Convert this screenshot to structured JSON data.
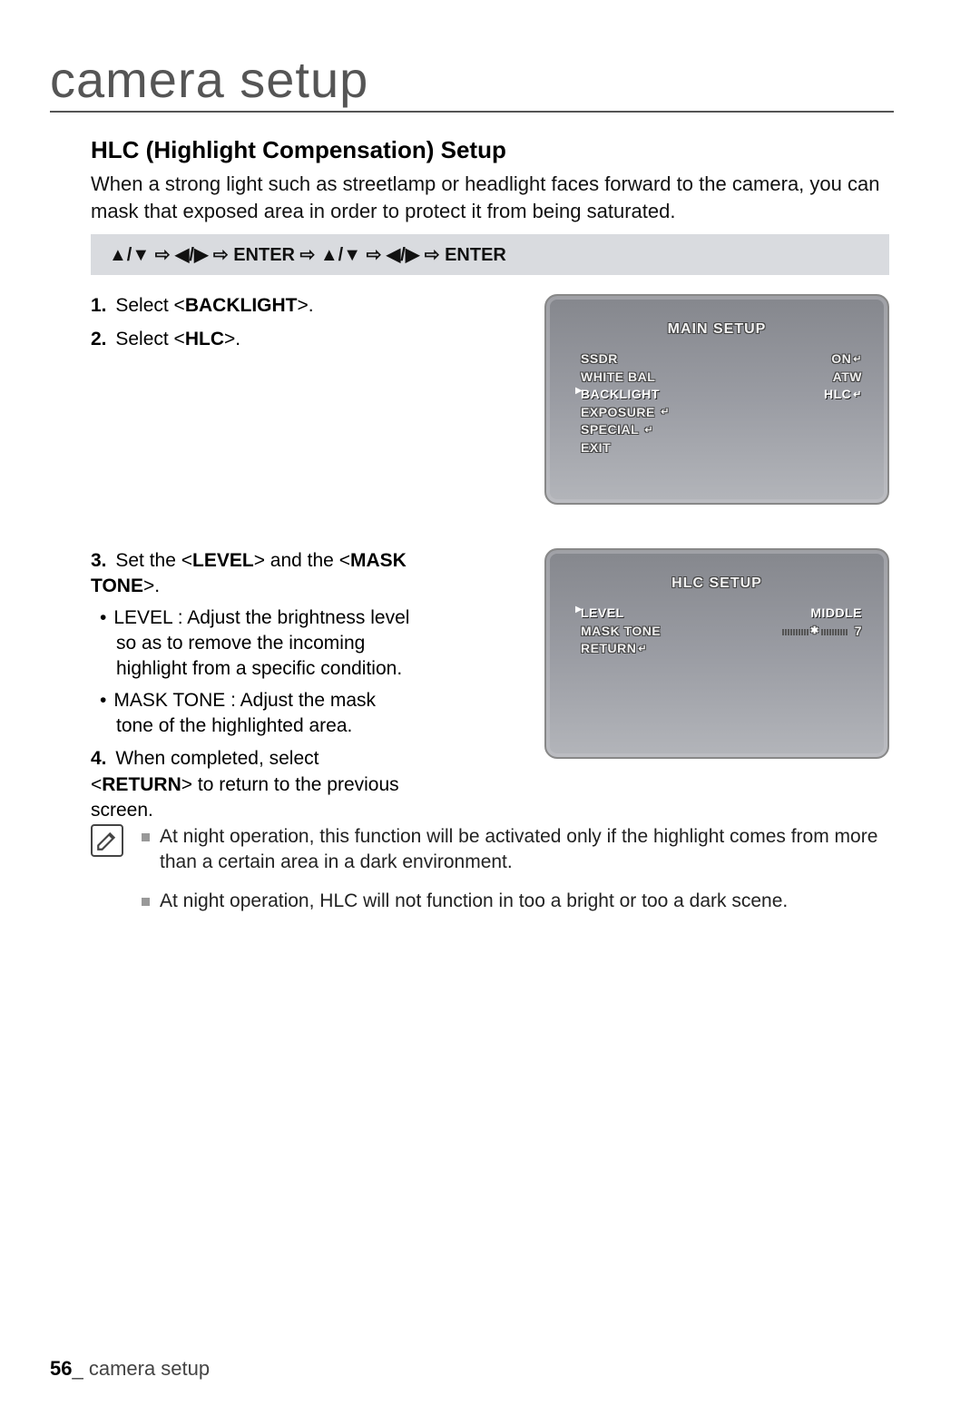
{
  "page": {
    "title": "camera setup",
    "section_title": "HLC (Highlight Compensation) Setup",
    "intro": "When a strong light such as streetlamp or headlight faces forward to the camera, you can mask that exposed area in order to protect it from being saturated.",
    "nav_sequence": "▲/▼ ⇨ ◀/▶ ⇨ ENTER ⇨ ▲/▼ ⇨ ◀/▶ ⇨ ENTER",
    "footer_page": "56",
    "footer_label": "_ camera setup"
  },
  "steps": {
    "s1_pre": "Select <",
    "s1_bold": "BACKLIGHT",
    "s1_post": ">.",
    "s2_pre": "Select <",
    "s2_bold": "HLC",
    "s2_post": ">.",
    "s3_pre": "Set the <",
    "s3_b1": "LEVEL",
    "s3_mid": "> and the <",
    "s3_b2": "MASK TONE",
    "s3_post": ">.",
    "s3_bullet1": "LEVEL : Adjust the brightness level so as to remove the incoming highlight from a specific condition.",
    "s3_bullet2": "MASK TONE : Adjust the mask tone of the highlighted area.",
    "s4_pre": "When completed, select <",
    "s4_bold": "RETURN",
    "s4_post": "> to return to the previous screen."
  },
  "osd_main": {
    "title": "MAIN SETUP",
    "rows": [
      {
        "label": "SSDR",
        "value": "ON",
        "enter_left": false,
        "enter_right": true,
        "selected": false
      },
      {
        "label": "WHITE BAL",
        "value": "ATW",
        "enter_left": false,
        "enter_right": false,
        "selected": false
      },
      {
        "label": "BACKLIGHT",
        "value": "HLC",
        "enter_left": false,
        "enter_right": true,
        "selected": true
      },
      {
        "label": "EXPOSURE",
        "value": "",
        "enter_left": true,
        "enter_right": false,
        "selected": false
      },
      {
        "label": "SPECIAL",
        "value": "",
        "enter_left": true,
        "enter_right": false,
        "selected": false
      },
      {
        "label": "EXIT",
        "value": "",
        "enter_left": false,
        "enter_right": false,
        "selected": false
      }
    ]
  },
  "osd_hlc": {
    "title": "HLC SETUP",
    "rows": [
      {
        "label": "LEVEL",
        "value": "MIDDLE",
        "slider": false,
        "enter_left": false,
        "selected": true
      },
      {
        "label": "MASK TONE",
        "value": "7",
        "slider": true,
        "enter_left": false,
        "selected": false
      },
      {
        "label": "RETURN",
        "value": "",
        "slider": false,
        "enter_left": true,
        "selected": false
      }
    ],
    "slider_ticks_left": 10,
    "slider_ticks_right": 10
  },
  "notes": {
    "n1": "At night operation, this function will be activated only if the highlight comes from more than a certain area in a dark environment.",
    "n2": "At night operation, HLC will not function in too a bright or too a dark scene."
  },
  "colors": {
    "panel_border": "#888888",
    "panel_bg_top": "#85878d",
    "panel_bg_bottom": "#b3b5ba",
    "navbar_bg": "#d9dbdf",
    "osd_text": "#f0f0f0",
    "note_bullet": "#999999"
  }
}
